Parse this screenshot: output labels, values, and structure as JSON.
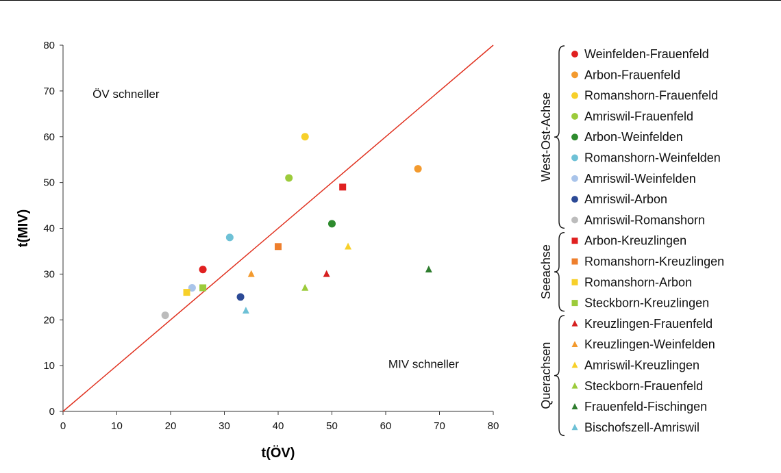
{
  "chart_data": {
    "type": "scatter",
    "xlabel": "t(ÖV)",
    "ylabel": "t(MIV)",
    "xlim": [
      0,
      80
    ],
    "ylim": [
      0,
      80
    ],
    "xticks": [
      "0",
      "10",
      "20",
      "30",
      "40",
      "50",
      "60",
      "70",
      "80"
    ],
    "yticks": [
      "0",
      "10",
      "20",
      "30",
      "40",
      "50",
      "60",
      "70",
      "80"
    ],
    "grid": false,
    "legend_position": "right",
    "reference_line": {
      "from": [
        0,
        0
      ],
      "to": [
        80,
        80
      ],
      "color": "#e0301e"
    },
    "annotations": [
      {
        "text": "ÖV schneller",
        "x": 5.5,
        "y": 68.5
      },
      {
        "text": "MIV schneller",
        "x": 60.5,
        "y": 9.5
      }
    ],
    "groups": [
      {
        "name": "West-Ost-Achse",
        "series": [
          {
            "name": "Weinfelden-Frauenfeld",
            "marker": "circle",
            "color": "#e02020",
            "x": 26,
            "y": 31
          },
          {
            "name": "Arbon-Frauenfeld",
            "marker": "circle",
            "color": "#f39a2e",
            "x": 66,
            "y": 53
          },
          {
            "name": "Romanshorn-Frauenfeld",
            "marker": "circle",
            "color": "#f7d02a",
            "x": 45,
            "y": 60
          },
          {
            "name": "Amriswil-Frauenfeld",
            "marker": "circle",
            "color": "#9ccb3b",
            "x": 42,
            "y": 51
          },
          {
            "name": "Arbon-Weinfelden",
            "marker": "circle",
            "color": "#2e8b2e",
            "x": 50,
            "y": 41
          },
          {
            "name": "Romanshorn-Weinfelden",
            "marker": "circle",
            "color": "#6ec1d6",
            "x": 31,
            "y": 38
          },
          {
            "name": "Amriswil-Weinfelden",
            "marker": "circle",
            "color": "#a9c4ea",
            "x": 24,
            "y": 27
          },
          {
            "name": "Amriswil-Arbon",
            "marker": "circle",
            "color": "#2c4a96",
            "x": 33,
            "y": 25
          },
          {
            "name": "Amriswil-Romanshorn",
            "marker": "circle",
            "color": "#bcbcbc",
            "x": 19,
            "y": 21
          }
        ]
      },
      {
        "name": "Seeachse",
        "series": [
          {
            "name": "Arbon-Kreuzlingen",
            "marker": "square",
            "color": "#e02020",
            "x": 52,
            "y": 49
          },
          {
            "name": "Romanshorn-Kreuzlingen",
            "marker": "square",
            "color": "#ee7f2d",
            "x": 40,
            "y": 36
          },
          {
            "name": "Romanshorn-Arbon",
            "marker": "square",
            "color": "#f7d02a",
            "x": 23,
            "y": 26
          },
          {
            "name": "Steckborn-Kreuzlingen",
            "marker": "square",
            "color": "#9ccb3b",
            "x": 26,
            "y": 27
          }
        ]
      },
      {
        "name": "Querachsen",
        "series": [
          {
            "name": "Kreuzlingen-Frauenfeld",
            "marker": "triangle",
            "color": "#d62020",
            "x": 49,
            "y": 30
          },
          {
            "name": "Kreuzlingen-Weinfelden",
            "marker": "triangle",
            "color": "#f39a2e",
            "x": 35,
            "y": 30
          },
          {
            "name": "Amriswil-Kreuzlingen",
            "marker": "triangle",
            "color": "#f7d02a",
            "x": 53,
            "y": 36
          },
          {
            "name": "Steckborn-Frauenfeld",
            "marker": "triangle",
            "color": "#9ccb3b",
            "x": 45,
            "y": 27
          },
          {
            "name": "Frauenfeld-Fischingen",
            "marker": "triangle",
            "color": "#2e7d2e",
            "x": 68,
            "y": 31
          },
          {
            "name": "Bischofszell-Amriswil",
            "marker": "triangle",
            "color": "#6ec1d6",
            "x": 34,
            "y": 22
          }
        ]
      }
    ]
  }
}
